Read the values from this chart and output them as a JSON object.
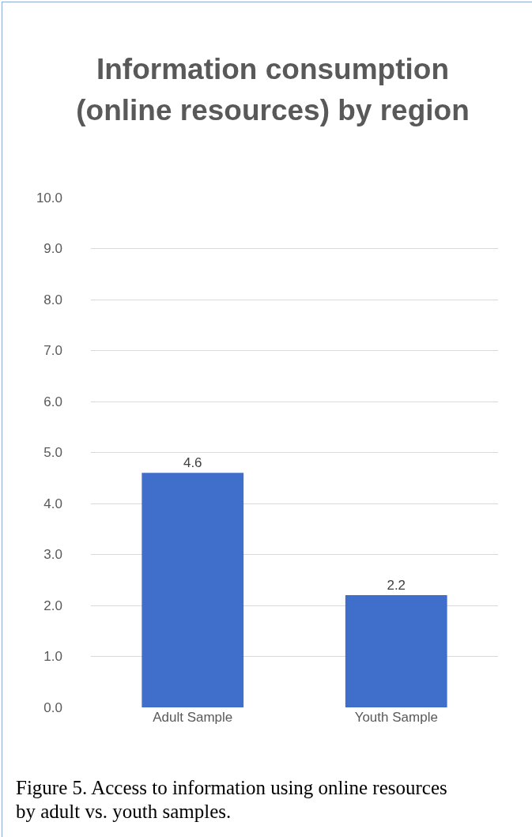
{
  "chart_data": {
    "type": "bar",
    "title": "Information consumption (online resources) by region",
    "categories": [
      "Adult Sample",
      "Youth Sample"
    ],
    "values": [
      4.6,
      2.2
    ],
    "color": "#3f6fcb",
    "ylim": [
      0,
      10
    ],
    "yticks": [
      {
        "value": 0,
        "label": "0.0"
      },
      {
        "value": 1,
        "label": "1.0"
      },
      {
        "value": 2,
        "label": "2.0"
      },
      {
        "value": 3,
        "label": "3.0"
      },
      {
        "value": 4,
        "label": "4.0"
      },
      {
        "value": 5,
        "label": "5.0"
      },
      {
        "value": 6,
        "label": "6.0"
      },
      {
        "value": 7,
        "label": "7.0"
      },
      {
        "value": 8,
        "label": "8.0"
      },
      {
        "value": 9,
        "label": "9.0"
      },
      {
        "value": 10,
        "label": "10.0"
      }
    ],
    "grid": "y",
    "data_labels": true,
    "legend": false,
    "annotations": [
      "Figure 5. Access to information using online resources by adult vs. youth samples."
    ]
  }
}
